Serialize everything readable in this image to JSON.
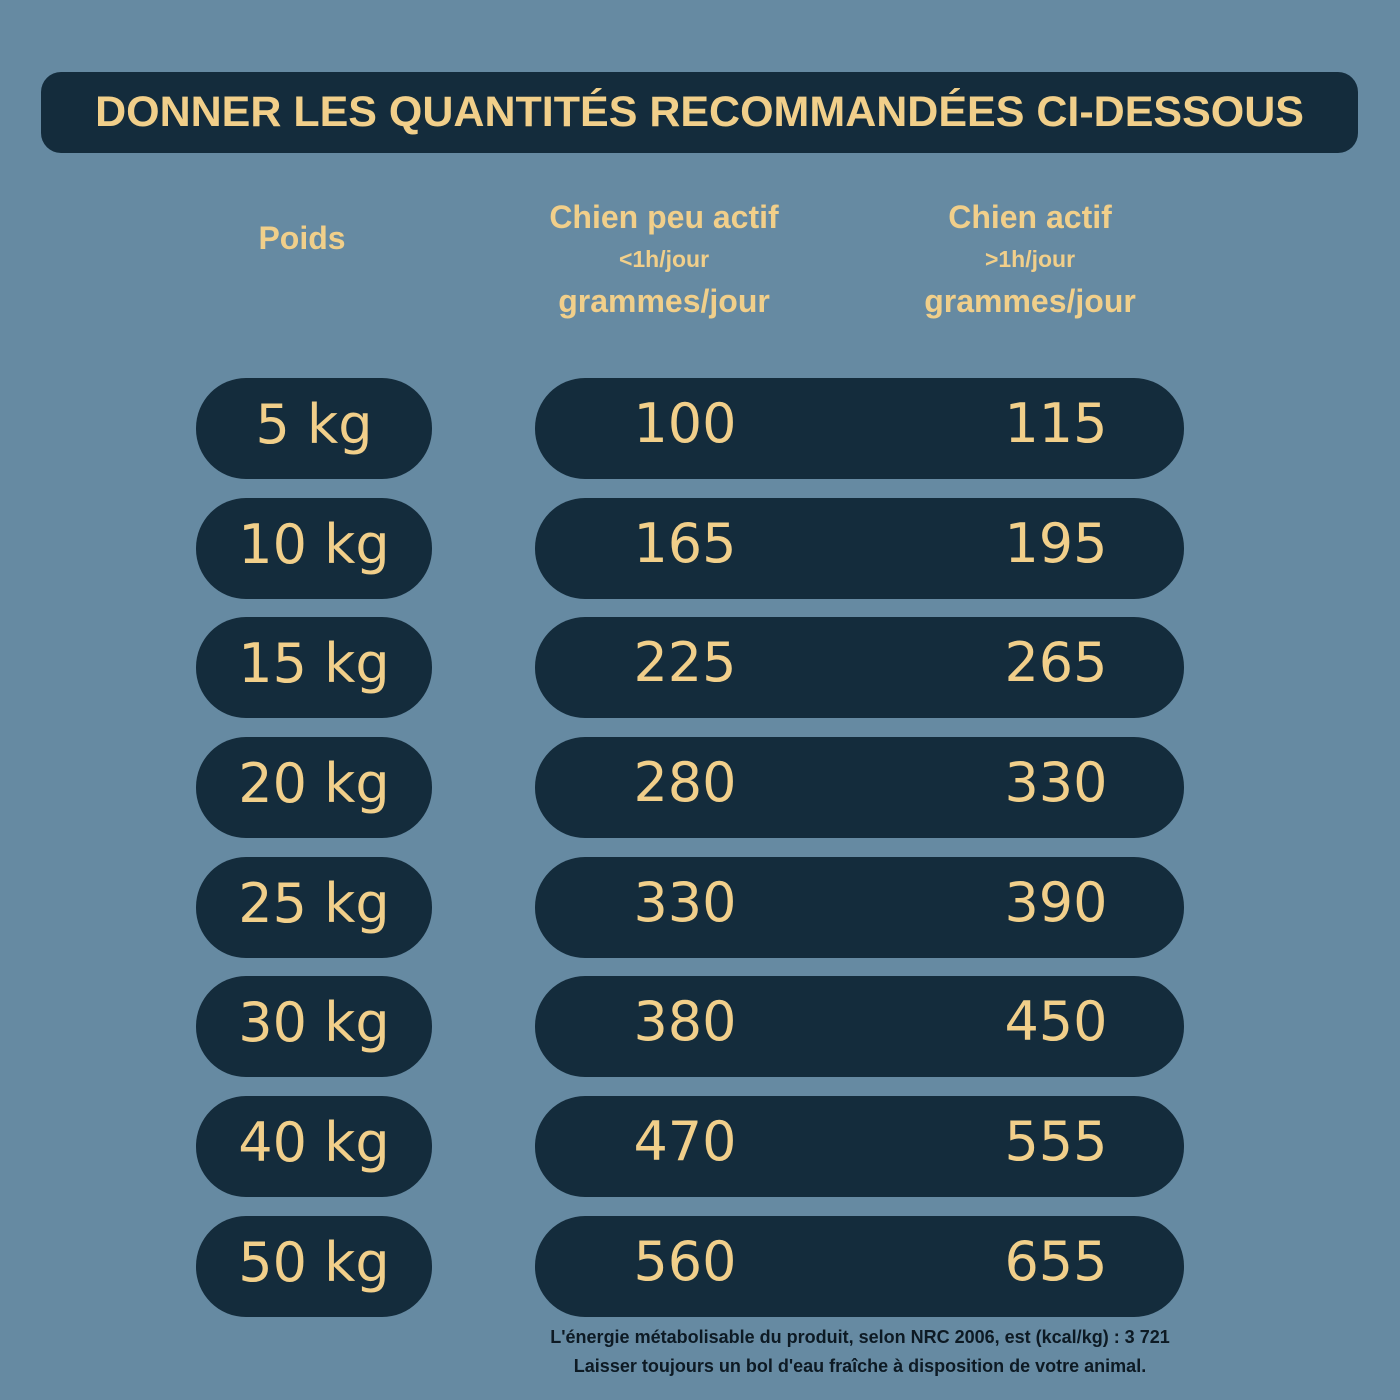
{
  "title": "DONNER LES QUANTITÉS RECOMMANDÉES CI-DESSOUS",
  "headers": {
    "poids": "Poids",
    "peu_actif": {
      "main": "Chien peu actif",
      "sub": "<1h/jour",
      "unit": "grammes/jour"
    },
    "actif": {
      "main": "Chien actif",
      "sub": ">1h/jour",
      "unit": "grammes/jour"
    }
  },
  "rows": [
    {
      "weight": "5 kg",
      "peu_actif": "100",
      "actif": "115"
    },
    {
      "weight": "10 kg",
      "peu_actif": "165",
      "actif": "195"
    },
    {
      "weight": "15 kg",
      "peu_actif": "225",
      "actif": "265"
    },
    {
      "weight": "20 kg",
      "peu_actif": "280",
      "actif": "330"
    },
    {
      "weight": "25 kg",
      "peu_actif": "330",
      "actif": "390"
    },
    {
      "weight": "30 kg",
      "peu_actif": "380",
      "actif": "450"
    },
    {
      "weight": "40 kg",
      "peu_actif": "470",
      "actif": "555"
    },
    {
      "weight": "50 kg",
      "peu_actif": "560",
      "actif": "655"
    }
  ],
  "footer": {
    "line1": "L'énergie métabolisable du produit, selon NRC 2006, est (kcal/kg) : 3 721",
    "line2": "Laisser toujours un bol d'eau fraîche à disposition de votre animal."
  },
  "colors": {
    "background": "#668aa2",
    "pill": "#142c3c",
    "accent_text": "#f1cf8a",
    "footer_text": "#0d1a24"
  }
}
